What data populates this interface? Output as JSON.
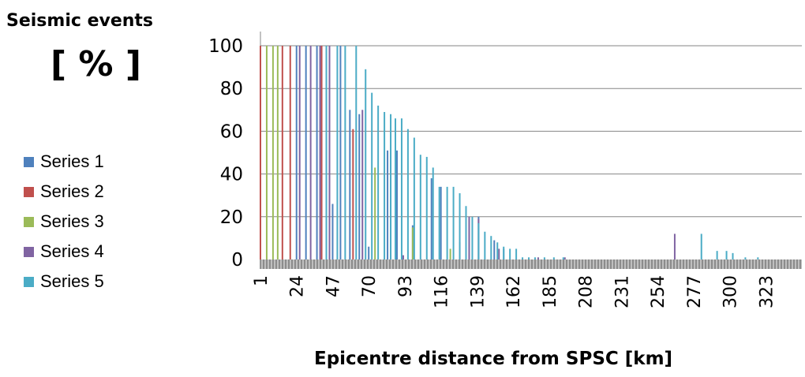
{
  "chart_data": {
    "type": "bar",
    "title": "",
    "ylabel_line1": "Seismic events",
    "ylabel_line2": "[ % ]",
    "xlabel": "Epicentre distance from SPSC  [km]",
    "ylim": [
      0,
      100
    ],
    "yticks": [
      0,
      20,
      40,
      60,
      80,
      100
    ],
    "x_tick_labels": [
      "1",
      "24",
      "47",
      "70",
      "93",
      "116",
      "139",
      "162",
      "185",
      "208",
      "231",
      "254",
      "277",
      "300",
      "323"
    ],
    "x_range": [
      1,
      346
    ],
    "grid": true,
    "legend_position": "left",
    "series": [
      {
        "name": "Series 1",
        "color": "#4F81BD",
        "points": [
          [
            1,
            100
          ],
          [
            24,
            100
          ],
          [
            30,
            100
          ],
          [
            37,
            100
          ],
          [
            47,
            26
          ],
          [
            52,
            100
          ],
          [
            58,
            70
          ],
          [
            64,
            68
          ],
          [
            70,
            6
          ],
          [
            82,
            51
          ],
          [
            88,
            51
          ],
          [
            98,
            16
          ],
          [
            110,
            38
          ],
          [
            116,
            34
          ],
          [
            140,
            20
          ],
          [
            150,
            9
          ],
          [
            156,
            5
          ]
        ]
      },
      {
        "name": "Series 2",
        "color": "#C0504D",
        "points": [
          [
            1,
            100
          ],
          [
            15,
            100
          ],
          [
            20,
            100
          ],
          [
            40,
            100
          ],
          [
            60,
            61
          ],
          [
            128,
            8
          ]
        ]
      },
      {
        "name": "Series 3",
        "color": "#9BBB59",
        "points": [
          [
            5,
            100
          ],
          [
            9,
            100
          ],
          [
            12,
            100
          ],
          [
            74,
            43
          ],
          [
            98,
            15
          ],
          [
            122,
            5
          ]
        ]
      },
      {
        "name": "Series 4",
        "color": "#8064A2",
        "points": [
          [
            26,
            100
          ],
          [
            33,
            100
          ],
          [
            39,
            100
          ],
          [
            45,
            100
          ],
          [
            66,
            70
          ],
          [
            92,
            2
          ],
          [
            134,
            20
          ],
          [
            140,
            19
          ],
          [
            153,
            5
          ],
          [
            178,
            1
          ],
          [
            195,
            1
          ],
          [
            265,
            12
          ]
        ]
      },
      {
        "name": "Series 5",
        "color": "#4BACC6",
        "points": [
          [
            43,
            100
          ],
          [
            50,
            100
          ],
          [
            55,
            100
          ],
          [
            62,
            100
          ],
          [
            68,
            89
          ],
          [
            72,
            78
          ],
          [
            76,
            72
          ],
          [
            80,
            69
          ],
          [
            84,
            68
          ],
          [
            87,
            66
          ],
          [
            91,
            66
          ],
          [
            95,
            61
          ],
          [
            99,
            57
          ],
          [
            103,
            49
          ],
          [
            107,
            48
          ],
          [
            111,
            43
          ],
          [
            115,
            34
          ],
          [
            120,
            34
          ],
          [
            124,
            34
          ],
          [
            128,
            31
          ],
          [
            132,
            25
          ],
          [
            136,
            20
          ],
          [
            140,
            17
          ],
          [
            144,
            13
          ],
          [
            148,
            11
          ],
          [
            152,
            8
          ],
          [
            156,
            6
          ],
          [
            160,
            5
          ],
          [
            164,
            5
          ],
          [
            168,
            1
          ],
          [
            172,
            1
          ],
          [
            176,
            1
          ],
          [
            182,
            1
          ],
          [
            188,
            1
          ],
          [
            194,
            1
          ],
          [
            282,
            12
          ],
          [
            292,
            4
          ],
          [
            298,
            4
          ],
          [
            302,
            3
          ],
          [
            310,
            1
          ],
          [
            318,
            1
          ]
        ]
      }
    ]
  }
}
